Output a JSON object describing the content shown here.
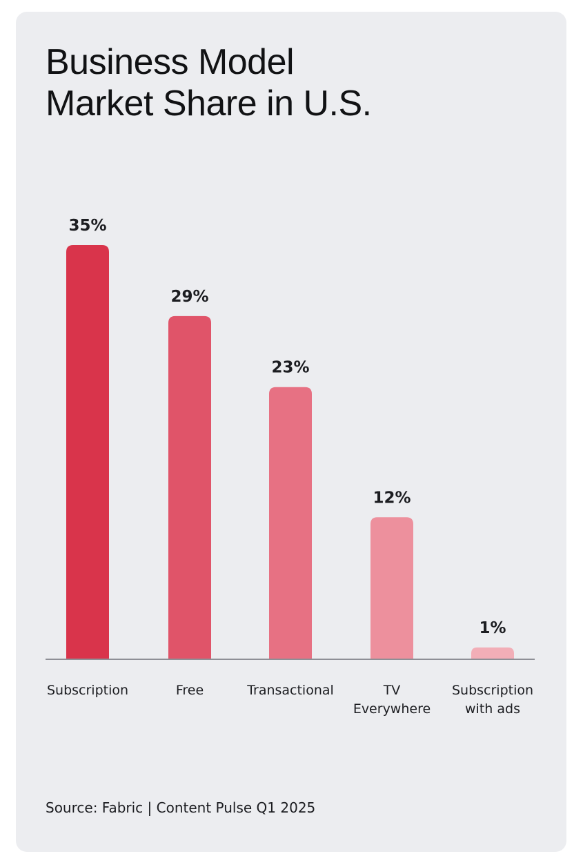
{
  "title_lines": [
    "Business Model",
    "Market Share in U.S."
  ],
  "source": "Source: Fabric | Content Pulse Q1 2025",
  "colors": {
    "background": "#ecedf0",
    "axis": "#8e8f96",
    "text": "#1c1d21"
  },
  "chart_data": {
    "type": "bar",
    "title": "Business Model Market Share in U.S.",
    "categories": [
      [
        "Subscription"
      ],
      [
        "Free"
      ],
      [
        "Transactional"
      ],
      [
        "TV",
        "Everywhere"
      ],
      [
        "Subscription",
        "with ads"
      ]
    ],
    "values": [
      35,
      29,
      23,
      12,
      1
    ],
    "value_labels": [
      "35%",
      "29%",
      "23%",
      "12%",
      "1%"
    ],
    "bar_colors": [
      "#d9344b",
      "#e05469",
      "#e77183",
      "#ed909d",
      "#f2aeb7"
    ],
    "unit": "%",
    "xlabel": "",
    "ylabel": "",
    "ylim": [
      0,
      35
    ],
    "grid": false,
    "legend": "none"
  }
}
